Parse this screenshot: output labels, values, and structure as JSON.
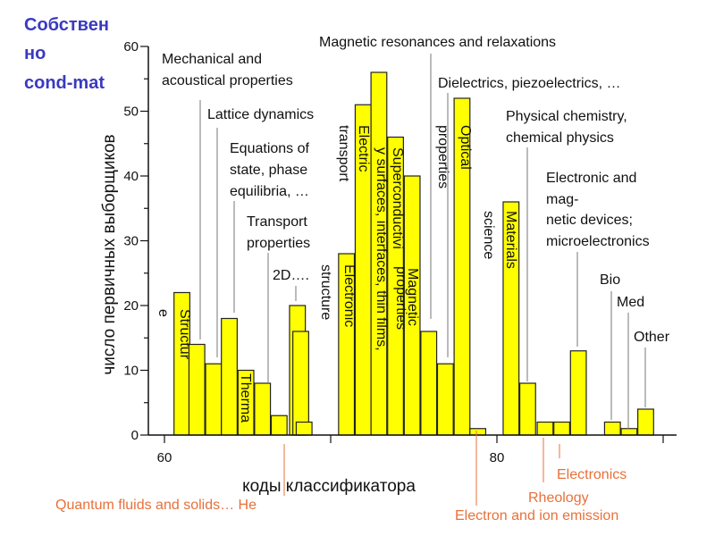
{
  "title_lines": [
    "Собствен",
    "но",
    "cond-mat"
  ],
  "chart_data": {
    "type": "bar",
    "xlabel": "коды классификатора",
    "ylabel": "число первичных выборщиков",
    "xlim": [
      60,
      90
    ],
    "ylim": [
      0,
      60
    ],
    "x_ticks": [
      60,
      70,
      80,
      90
    ],
    "x_tick_labels": [
      "60",
      "",
      "80",
      ""
    ],
    "y_ticks": [
      0,
      10,
      20,
      30,
      40,
      50,
      60
    ],
    "y_tick_labels": [
      "0",
      "10",
      "20",
      "30",
      "40",
      "50",
      "60"
    ],
    "bars": [
      {
        "x": 61.05,
        "value": 22
      },
      {
        "x": 61.95,
        "value": 14
      },
      {
        "x": 62.95,
        "value": 11
      },
      {
        "x": 63.9,
        "value": 18
      },
      {
        "x": 64.9,
        "value": 10
      },
      {
        "x": 65.9,
        "value": 8
      },
      {
        "x": 66.9,
        "value": 3
      },
      {
        "x": 68.0,
        "value": 20
      },
      {
        "x": 68.2,
        "value": 16
      },
      {
        "x": 68.4,
        "value": 2
      },
      {
        "x": 70.95,
        "value": 28
      },
      {
        "x": 71.95,
        "value": 51
      },
      {
        "x": 72.9,
        "value": 56
      },
      {
        "x": 73.9,
        "value": 46
      },
      {
        "x": 74.9,
        "value": 40
      },
      {
        "x": 75.9,
        "value": 16
      },
      {
        "x": 76.9,
        "value": 11
      },
      {
        "x": 77.9,
        "value": 52
      },
      {
        "x": 78.85,
        "value": 1
      },
      {
        "x": 80.85,
        "value": 36
      },
      {
        "x": 81.85,
        "value": 8
      },
      {
        "x": 82.9,
        "value": 2
      },
      {
        "x": 83.9,
        "value": 2
      },
      {
        "x": 84.9,
        "value": 13
      },
      {
        "x": 86.95,
        "value": 2
      },
      {
        "x": 87.95,
        "value": 1
      },
      {
        "x": 88.95,
        "value": 4
      }
    ],
    "annotations": {
      "mechanical": [
        "Mechanical and",
        "acoustical properties"
      ],
      "lattice": "Lattice dynamics",
      "equations": [
        "Equations of",
        "state, phase",
        "equilibria, …"
      ],
      "transport_props": [
        "Transport",
        "properties"
      ],
      "two_d": "2D….",
      "magnetic_res": "Magnetic resonances and relaxations",
      "dielectrics": "Dielectrics, piezoelectrics, …",
      "physchem": [
        "Physical chemistry,",
        "chemical physics"
      ],
      "electronic_devices": [
        "Electronic and",
        "mag-",
        "netic devices;",
        "microelectronics"
      ],
      "bio": "Bio",
      "med": "Med",
      "other": "Other",
      "quantum": "Quantum fluids and solids… He",
      "electronics": "Electronics",
      "rheology": "Rheology",
      "electron_emission": "Electron and ion emission"
    },
    "bar_labels": {
      "structure_a": "Structur",
      "structure_b": "e",
      "thermal": "Therma",
      "transport": "transport",
      "electric": "Electric",
      "electronic": "Electronic",
      "structure": "structure",
      "surfaces": "y surfaces, interfaces, thin films,",
      "superconductivity": "Superconductivi",
      "properties1": "properties",
      "magnetic": "Magnetic",
      "properties2": "properties",
      "optical": "Optical",
      "science": "science",
      "materials": "Materials"
    }
  }
}
